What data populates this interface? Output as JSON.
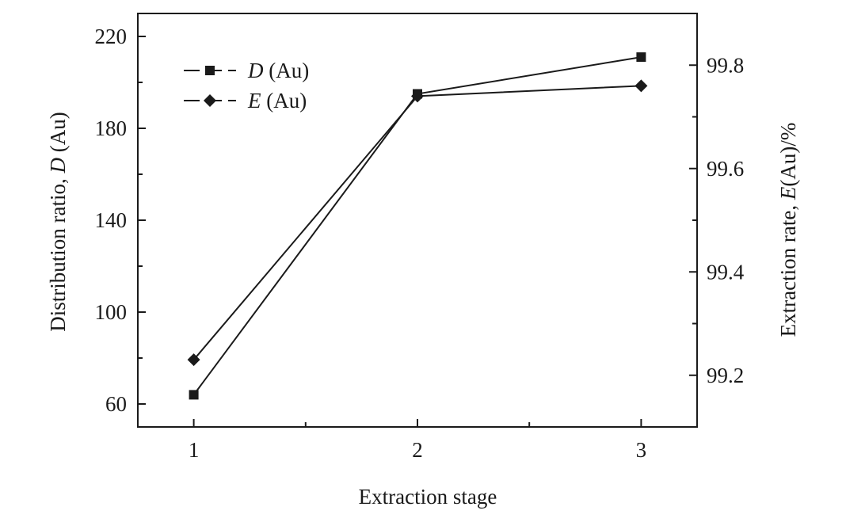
{
  "chart_data": {
    "type": "line",
    "categories": [
      "1",
      "2",
      "3"
    ],
    "x": [
      1,
      2,
      3
    ],
    "xlabel": "Extraction stage",
    "ylabel_left": {
      "prefix": "Distribution ratio, ",
      "var": "D",
      "suffix": " (Au)"
    },
    "ylabel_right": {
      "prefix": "Extraction rate, ",
      "var": "E",
      "suffix": "(Au)/%"
    },
    "xlim": [
      0.75,
      3.25
    ],
    "ylim_left": [
      50,
      230
    ],
    "ylim_right": [
      99.1,
      99.9
    ],
    "xticks": [
      1,
      2,
      3
    ],
    "yticks_left": [
      60,
      100,
      140,
      180,
      220
    ],
    "yticks_right": [
      99.2,
      99.4,
      99.6,
      99.8
    ],
    "ytick_labels_left": [
      "60",
      "100",
      "140",
      "180",
      "220"
    ],
    "ytick_labels_right": [
      "99.2",
      "99.4",
      "99.6",
      "99.8"
    ],
    "legend_position": "top-left",
    "grid": false,
    "series": [
      {
        "var": "D",
        "suffix": " (Au)",
        "axis": "left",
        "marker": "square",
        "values": [
          64,
          195,
          211
        ]
      },
      {
        "var": "E",
        "suffix": " (Au)",
        "axis": "right",
        "marker": "diamond",
        "values": [
          99.23,
          99.74,
          99.76
        ]
      }
    ],
    "colors": {
      "line": "#1a1a1a",
      "marker": "#1a1a1a"
    }
  }
}
